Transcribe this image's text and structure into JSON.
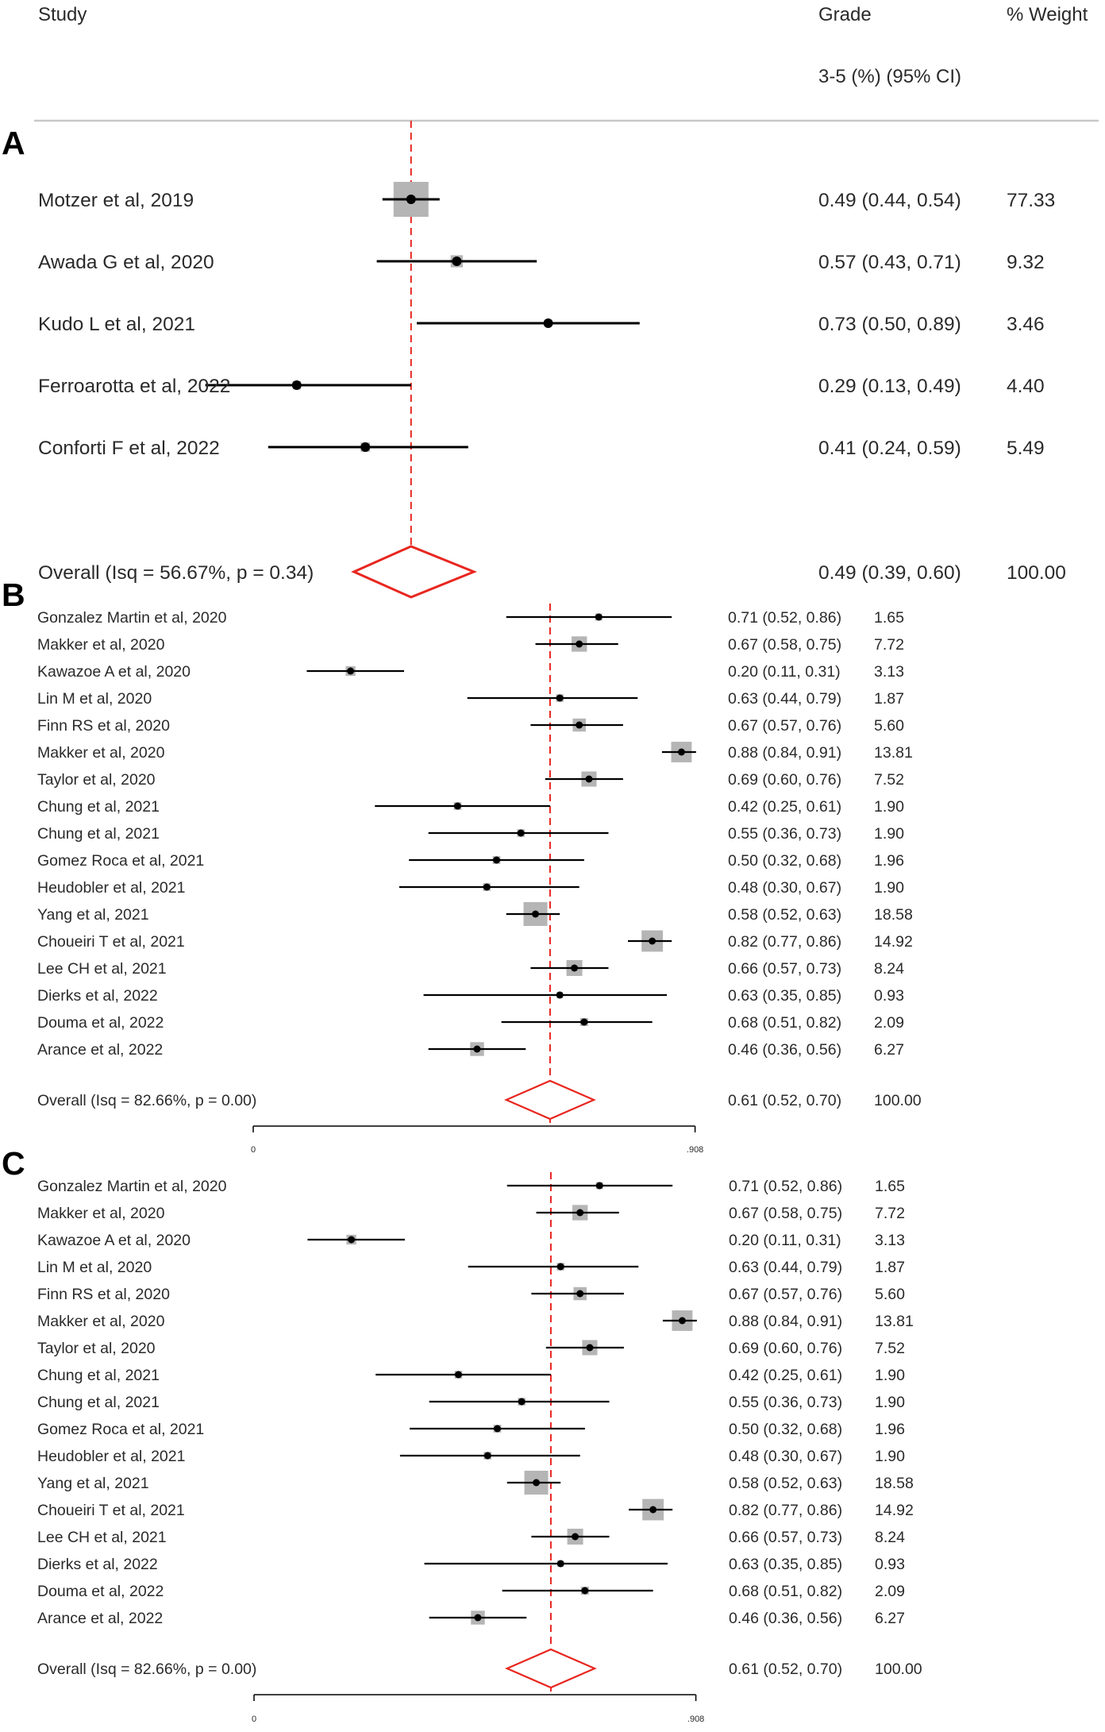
{
  "header": {
    "study": "Study",
    "grade_line1": "Grade",
    "grade_line2": "3-5 (%) (95% CI)",
    "weight": "% Weight"
  },
  "chart_data": [
    {
      "type": "forest",
      "panel": "A",
      "reference_line": 0.49,
      "studies": [
        {
          "label": "Motzer et al, 2019",
          "est": 0.49,
          "lo": 0.44,
          "hi": 0.54,
          "ci_text": "0.49 (0.44, 0.54)",
          "weight": 77.33,
          "weight_text": "77.33"
        },
        {
          "label": "Awada G et al, 2020",
          "est": 0.57,
          "lo": 0.43,
          "hi": 0.71,
          "ci_text": "0.57 (0.43, 0.71)",
          "weight": 9.32,
          "weight_text": "9.32"
        },
        {
          "label": "Kudo L et al, 2021",
          "est": 0.73,
          "lo": 0.5,
          "hi": 0.89,
          "ci_text": "0.73 (0.50, 0.89)",
          "weight": 3.46,
          "weight_text": "3.46"
        },
        {
          "label": "Ferroarotta et al, 2022",
          "est": 0.29,
          "lo": 0.13,
          "hi": 0.49,
          "ci_text": "0.29 (0.13, 0.49)",
          "weight": 4.4,
          "weight_text": "4.40"
        },
        {
          "label": "Conforti F et al, 2022",
          "est": 0.41,
          "lo": 0.24,
          "hi": 0.59,
          "ci_text": "0.41 (0.24, 0.59)",
          "weight": 5.49,
          "weight_text": "5.49"
        }
      ],
      "overall": {
        "label": "Overall (Isq = 56.67%, p = 0.34)",
        "est": 0.49,
        "lo": 0.39,
        "hi": 0.6,
        "ci_text": "0.49 (0.39, 0.60)",
        "weight_text": "100.00"
      }
    },
    {
      "type": "forest",
      "panel": "B",
      "reference_line": 0.61,
      "axis": {
        "min": 0,
        "max": 0.908,
        "ticks": [
          "0",
          ".908"
        ]
      },
      "studies": [
        {
          "label": "Gonzalez Martin et al, 2020",
          "est": 0.71,
          "lo": 0.52,
          "hi": 0.86,
          "ci_text": "0.71 (0.52, 0.86)",
          "weight": 1.65,
          "weight_text": "1.65"
        },
        {
          "label": "Makker et al, 2020",
          "est": 0.67,
          "lo": 0.58,
          "hi": 0.75,
          "ci_text": "0.67 (0.58, 0.75)",
          "weight": 7.72,
          "weight_text": "7.72"
        },
        {
          "label": "Kawazoe A et al, 2020",
          "est": 0.2,
          "lo": 0.11,
          "hi": 0.31,
          "ci_text": "0.20 (0.11, 0.31)",
          "weight": 3.13,
          "weight_text": "3.13"
        },
        {
          "label": "Lin M et al, 2020",
          "est": 0.63,
          "lo": 0.44,
          "hi": 0.79,
          "ci_text": "0.63 (0.44, 0.79)",
          "weight": 1.87,
          "weight_text": "1.87"
        },
        {
          "label": "Finn RS et al, 2020",
          "est": 0.67,
          "lo": 0.57,
          "hi": 0.76,
          "ci_text": "0.67 (0.57, 0.76)",
          "weight": 5.6,
          "weight_text": "5.60"
        },
        {
          "label": "Makker et al, 2020",
          "est": 0.88,
          "lo": 0.84,
          "hi": 0.91,
          "ci_text": "0.88 (0.84, 0.91)",
          "weight": 13.81,
          "weight_text": "13.81"
        },
        {
          "label": "Taylor et al, 2020",
          "est": 0.69,
          "lo": 0.6,
          "hi": 0.76,
          "ci_text": "0.69 (0.60, 0.76)",
          "weight": 7.52,
          "weight_text": "7.52"
        },
        {
          "label": "Chung et al, 2021",
          "est": 0.42,
          "lo": 0.25,
          "hi": 0.61,
          "ci_text": "0.42 (0.25, 0.61)",
          "weight": 1.9,
          "weight_text": "1.90"
        },
        {
          "label": "Chung et al, 2021",
          "est": 0.55,
          "lo": 0.36,
          "hi": 0.73,
          "ci_text": "0.55 (0.36, 0.73)",
          "weight": 1.9,
          "weight_text": "1.90"
        },
        {
          "label": "Gomez Roca et al, 2021",
          "est": 0.5,
          "lo": 0.32,
          "hi": 0.68,
          "ci_text": "0.50 (0.32, 0.68)",
          "weight": 1.96,
          "weight_text": "1.96"
        },
        {
          "label": "Heudobler et al, 2021",
          "est": 0.48,
          "lo": 0.3,
          "hi": 0.67,
          "ci_text": "0.48 (0.30, 0.67)",
          "weight": 1.9,
          "weight_text": "1.90"
        },
        {
          "label": "Yang et al, 2021",
          "est": 0.58,
          "lo": 0.52,
          "hi": 0.63,
          "ci_text": "0.58 (0.52, 0.63)",
          "weight": 18.58,
          "weight_text": "18.58"
        },
        {
          "label": "Choueiri T et al, 2021",
          "est": 0.82,
          "lo": 0.77,
          "hi": 0.86,
          "ci_text": "0.82 (0.77, 0.86)",
          "weight": 14.92,
          "weight_text": "14.92"
        },
        {
          "label": "Lee CH et al, 2021",
          "est": 0.66,
          "lo": 0.57,
          "hi": 0.73,
          "ci_text": "0.66 (0.57, 0.73)",
          "weight": 8.24,
          "weight_text": "8.24"
        },
        {
          "label": "Dierks et al, 2022",
          "est": 0.63,
          "lo": 0.35,
          "hi": 0.85,
          "ci_text": "0.63 (0.35, 0.85)",
          "weight": 0.93,
          "weight_text": "0.93"
        },
        {
          "label": "Douma et al, 2022",
          "est": 0.68,
          "lo": 0.51,
          "hi": 0.82,
          "ci_text": "0.68 (0.51, 0.82)",
          "weight": 2.09,
          "weight_text": "2.09"
        },
        {
          "label": "Arance et al, 2022",
          "est": 0.46,
          "lo": 0.36,
          "hi": 0.56,
          "ci_text": "0.46 (0.36, 0.56)",
          "weight": 6.27,
          "weight_text": "6.27"
        }
      ],
      "overall": {
        "label": "Overall (Isq = 82.66%, p = 0.00)",
        "est": 0.61,
        "lo": 0.52,
        "hi": 0.7,
        "ci_text": "0.61 (0.52, 0.70)",
        "weight_text": "100.00"
      }
    },
    {
      "type": "forest",
      "panel": "C",
      "reference_line": 0.61,
      "axis": {
        "min": 0,
        "max": 0.908,
        "ticks": [
          "0",
          ".908"
        ]
      },
      "studies": [
        {
          "label": "Gonzalez Martin et al, 2020",
          "est": 0.71,
          "lo": 0.52,
          "hi": 0.86,
          "ci_text": "0.71 (0.52, 0.86)",
          "weight": 1.65,
          "weight_text": "1.65"
        },
        {
          "label": "Makker et al, 2020",
          "est": 0.67,
          "lo": 0.58,
          "hi": 0.75,
          "ci_text": "0.67 (0.58, 0.75)",
          "weight": 7.72,
          "weight_text": "7.72"
        },
        {
          "label": "Kawazoe A et al, 2020",
          "est": 0.2,
          "lo": 0.11,
          "hi": 0.31,
          "ci_text": "0.20 (0.11, 0.31)",
          "weight": 3.13,
          "weight_text": "3.13"
        },
        {
          "label": "Lin M et al, 2020",
          "est": 0.63,
          "lo": 0.44,
          "hi": 0.79,
          "ci_text": "0.63 (0.44, 0.79)",
          "weight": 1.87,
          "weight_text": "1.87"
        },
        {
          "label": "Finn RS et al, 2020",
          "est": 0.67,
          "lo": 0.57,
          "hi": 0.76,
          "ci_text": "0.67 (0.57, 0.76)",
          "weight": 5.6,
          "weight_text": "5.60"
        },
        {
          "label": "Makker et al, 2020",
          "est": 0.88,
          "lo": 0.84,
          "hi": 0.91,
          "ci_text": "0.88 (0.84, 0.91)",
          "weight": 13.81,
          "weight_text": "13.81"
        },
        {
          "label": "Taylor et al, 2020",
          "est": 0.69,
          "lo": 0.6,
          "hi": 0.76,
          "ci_text": "0.69 (0.60, 0.76)",
          "weight": 7.52,
          "weight_text": "7.52"
        },
        {
          "label": "Chung et al, 2021",
          "est": 0.42,
          "lo": 0.25,
          "hi": 0.61,
          "ci_text": "0.42 (0.25, 0.61)",
          "weight": 1.9,
          "weight_text": "1.90"
        },
        {
          "label": "Chung et al, 2021",
          "est": 0.55,
          "lo": 0.36,
          "hi": 0.73,
          "ci_text": "0.55 (0.36, 0.73)",
          "weight": 1.9,
          "weight_text": "1.90"
        },
        {
          "label": "Gomez Roca et al, 2021",
          "est": 0.5,
          "lo": 0.32,
          "hi": 0.68,
          "ci_text": "0.50 (0.32, 0.68)",
          "weight": 1.96,
          "weight_text": "1.96"
        },
        {
          "label": "Heudobler et al, 2021",
          "est": 0.48,
          "lo": 0.3,
          "hi": 0.67,
          "ci_text": "0.48 (0.30, 0.67)",
          "weight": 1.9,
          "weight_text": "1.90"
        },
        {
          "label": "Yang et al, 2021",
          "est": 0.58,
          "lo": 0.52,
          "hi": 0.63,
          "ci_text": "0.58 (0.52, 0.63)",
          "weight": 18.58,
          "weight_text": "18.58"
        },
        {
          "label": "Choueiri T et al, 2021",
          "est": 0.82,
          "lo": 0.77,
          "hi": 0.86,
          "ci_text": "0.82 (0.77, 0.86)",
          "weight": 14.92,
          "weight_text": "14.92"
        },
        {
          "label": "Lee CH et al, 2021",
          "est": 0.66,
          "lo": 0.57,
          "hi": 0.73,
          "ci_text": "0.66 (0.57, 0.73)",
          "weight": 8.24,
          "weight_text": "8.24"
        },
        {
          "label": "Dierks et al, 2022",
          "est": 0.63,
          "lo": 0.35,
          "hi": 0.85,
          "ci_text": "0.63 (0.35, 0.85)",
          "weight": 0.93,
          "weight_text": "0.93"
        },
        {
          "label": "Douma et al, 2022",
          "est": 0.68,
          "lo": 0.51,
          "hi": 0.82,
          "ci_text": "0.68 (0.51, 0.82)",
          "weight": 2.09,
          "weight_text": "2.09"
        },
        {
          "label": "Arance et al, 2022",
          "est": 0.46,
          "lo": 0.36,
          "hi": 0.56,
          "ci_text": "0.46 (0.36, 0.56)",
          "weight": 6.27,
          "weight_text": "6.27"
        }
      ],
      "overall": {
        "label": "Overall (Isq = 82.66%, p = 0.00)",
        "est": 0.61,
        "lo": 0.52,
        "hi": 0.7,
        "ci_text": "0.61 (0.52, 0.70)",
        "weight_text": "100.00"
      }
    }
  ]
}
